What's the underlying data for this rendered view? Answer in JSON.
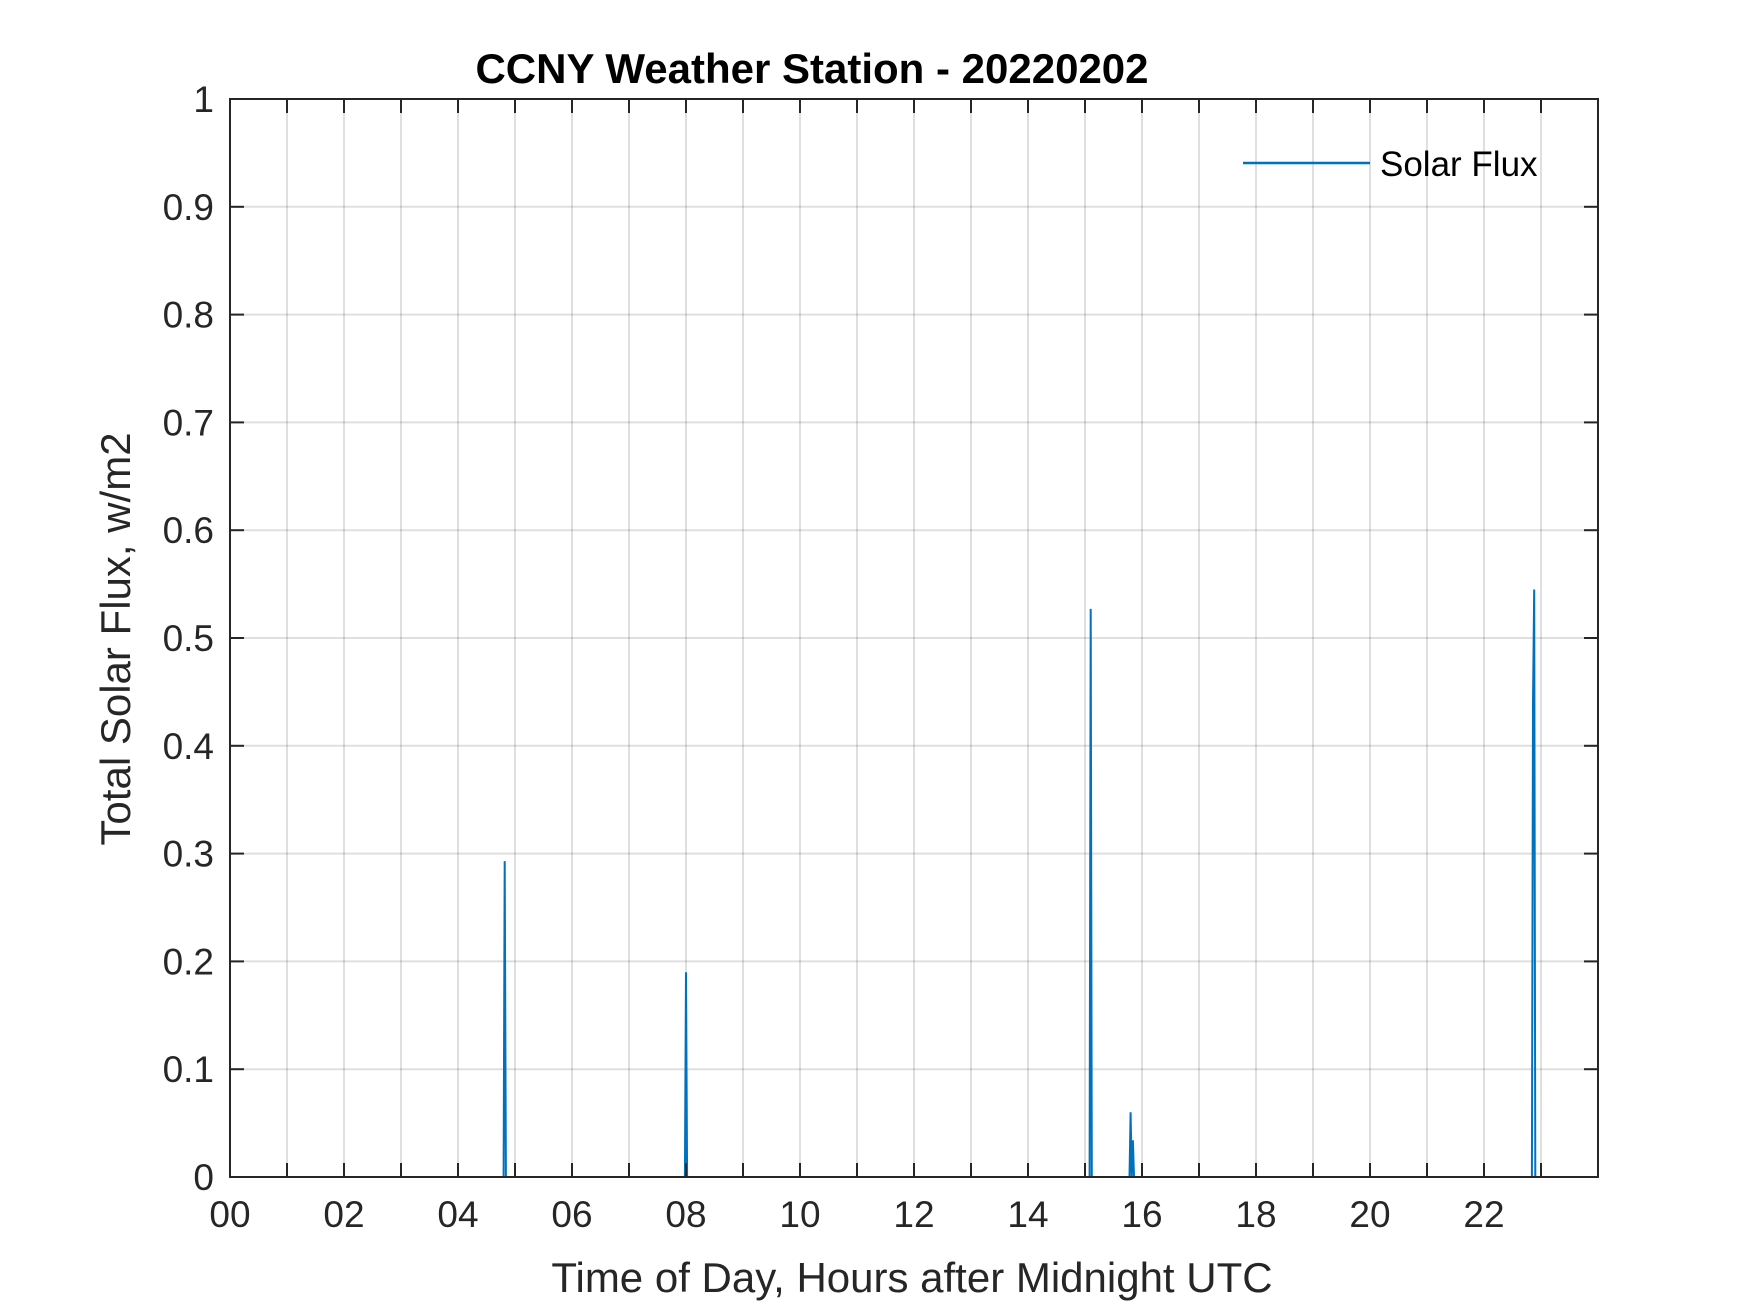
{
  "chart_data": {
    "type": "line",
    "title": "CCNY Weather Station - 20220202",
    "xlabel": "Time of Day, Hours after Midnight UTC",
    "ylabel": "Total Solar Flux, w/m2",
    "xlim": [
      0,
      24
    ],
    "ylim": [
      0,
      1
    ],
    "x_ticks": [
      0,
      2,
      4,
      6,
      8,
      10,
      12,
      14,
      16,
      18,
      20,
      22
    ],
    "x_tick_labels": [
      "00",
      "02",
      "04",
      "06",
      "08",
      "10",
      "12",
      "14",
      "16",
      "18",
      "20",
      "22"
    ],
    "x_minor_ticks": [
      1,
      3,
      5,
      7,
      9,
      11,
      13,
      15,
      17,
      19,
      21,
      23
    ],
    "y_ticks": [
      0,
      0.1,
      0.2,
      0.3,
      0.4,
      0.5,
      0.6,
      0.7,
      0.8,
      0.9,
      1
    ],
    "y_tick_labels": [
      "0",
      "0.1",
      "0.2",
      "0.3",
      "0.4",
      "0.5",
      "0.6",
      "0.7",
      "0.8",
      "0.9",
      "1"
    ],
    "grid": true,
    "legend_position": "top-right",
    "series": [
      {
        "name": "Solar Flux",
        "color": "#0072BD",
        "x": [
          0,
          4.8,
          4.82,
          4.84,
          4.86,
          7.98,
          8.0,
          8.02,
          8.04,
          15.08,
          15.1,
          15.12,
          15.14,
          15.78,
          15.8,
          15.82,
          15.84,
          15.86,
          15.88,
          22.84,
          22.86,
          22.88,
          22.9,
          22.92,
          24
        ],
        "y": [
          0,
          0,
          0.293,
          0,
          0,
          0,
          0.19,
          0,
          0,
          0,
          0.527,
          0,
          0,
          0,
          0.06,
          0,
          0.034,
          0,
          0,
          0,
          0.44,
          0.545,
          0,
          0,
          0
        ]
      }
    ]
  }
}
